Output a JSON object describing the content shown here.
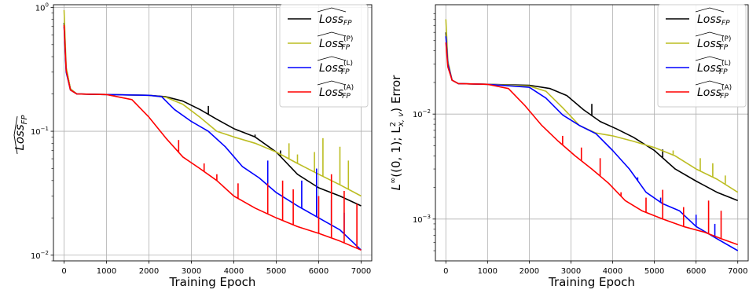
{
  "chart_data": [
    {
      "type": "line",
      "title": "",
      "xlabel": "Training Epoch",
      "ylabel": "Loss_FP (hat)",
      "ylabel_main": "Loss",
      "ylabel_sub": "FP",
      "yscale": "log",
      "xlim": [
        -250,
        7250
      ],
      "ylim": [
        0.009,
        1.05
      ],
      "x_ticks": [
        0,
        1000,
        2000,
        3000,
        4000,
        5000,
        6000,
        7000
      ],
      "x_tick_labels": [
        "0",
        "1000",
        "2000",
        "3000",
        "4000",
        "5000",
        "6000",
        "7000"
      ],
      "y_ticks": [
        0.01,
        0.1,
        1
      ],
      "y_tick_labels": [
        [
          "10",
          "−2"
        ],
        [
          "10",
          "−1"
        ],
        [
          "10",
          "0"
        ]
      ],
      "grid": true,
      "legend_position": "top-right",
      "series": [
        {
          "name": "Loss_FP",
          "legend_main": "Loss",
          "legend_sub": "FP",
          "legend_sup": "",
          "color": "#000000",
          "points": [
            [
              0,
              0.75
            ],
            [
              50,
              0.32
            ],
            [
              150,
              0.22
            ],
            [
              300,
              0.2
            ],
            [
              1000,
              0.198
            ],
            [
              2000,
              0.195
            ],
            [
              2400,
              0.19
            ],
            [
              2800,
              0.175
            ],
            [
              3200,
              0.15
            ],
            [
              3600,
              0.125
            ],
            [
              4000,
              0.105
            ],
            [
              4500,
              0.09
            ],
            [
              5000,
              0.068
            ],
            [
              5500,
              0.045
            ],
            [
              6000,
              0.035
            ],
            [
              6500,
              0.03
            ],
            [
              7000,
              0.025
            ]
          ],
          "spikes": [
            [
              3400,
              0.16
            ],
            [
              4500,
              0.094
            ],
            [
              5100,
              0.07
            ]
          ]
        },
        {
          "name": "Loss_FP^(P)",
          "legend_main": "Loss",
          "legend_sub": "FP",
          "legend_sup": "(P)",
          "color": "#bcbd22",
          "points": [
            [
              0,
              0.95
            ],
            [
              50,
              0.33
            ],
            [
              150,
              0.22
            ],
            [
              300,
              0.2
            ],
            [
              1000,
              0.198
            ],
            [
              2000,
              0.195
            ],
            [
              2400,
              0.188
            ],
            [
              2800,
              0.165
            ],
            [
              3200,
              0.13
            ],
            [
              3600,
              0.1
            ],
            [
              4000,
              0.09
            ],
            [
              4500,
              0.08
            ],
            [
              5000,
              0.068
            ],
            [
              5500,
              0.055
            ],
            [
              6000,
              0.045
            ],
            [
              6500,
              0.037
            ],
            [
              7000,
              0.03
            ]
          ],
          "spikes": [
            [
              5300,
              0.08
            ],
            [
              5500,
              0.065
            ],
            [
              5900,
              0.068
            ],
            [
              6100,
              0.088
            ],
            [
              6500,
              0.075
            ],
            [
              6700,
              0.058
            ]
          ]
        },
        {
          "name": "Loss_FP^(L)",
          "legend_main": "Loss",
          "legend_sub": "FP",
          "legend_sup": "(L)",
          "color": "#0000ff",
          "points": [
            [
              0,
              0.7
            ],
            [
              50,
              0.3
            ],
            [
              150,
              0.215
            ],
            [
              300,
              0.2
            ],
            [
              1000,
              0.198
            ],
            [
              2000,
              0.195
            ],
            [
              2300,
              0.19
            ],
            [
              2600,
              0.15
            ],
            [
              3000,
              0.12
            ],
            [
              3400,
              0.1
            ],
            [
              3800,
              0.075
            ],
            [
              4200,
              0.052
            ],
            [
              4600,
              0.042
            ],
            [
              5000,
              0.032
            ],
            [
              5500,
              0.025
            ],
            [
              6000,
              0.02
            ],
            [
              6500,
              0.016
            ],
            [
              7000,
              0.011
            ]
          ],
          "spikes": [
            [
              4800,
              0.058
            ],
            [
              5600,
              0.04
            ],
            [
              5950,
              0.05
            ],
            [
              6300,
              0.028
            ],
            [
              6600,
              0.022
            ]
          ]
        },
        {
          "name": "Loss_FP^(A)",
          "legend_main": "Loss",
          "legend_sub": "FP",
          "legend_sup": "(A)",
          "color": "#ff0000",
          "points": [
            [
              0,
              0.72
            ],
            [
              50,
              0.31
            ],
            [
              150,
              0.215
            ],
            [
              300,
              0.2
            ],
            [
              1000,
              0.198
            ],
            [
              1600,
              0.18
            ],
            [
              2000,
              0.13
            ],
            [
              2400,
              0.088
            ],
            [
              2800,
              0.062
            ],
            [
              3200,
              0.05
            ],
            [
              3600,
              0.04
            ],
            [
              4000,
              0.03
            ],
            [
              4500,
              0.024
            ],
            [
              5000,
              0.02
            ],
            [
              5500,
              0.017
            ],
            [
              6000,
              0.015
            ],
            [
              6500,
              0.013
            ],
            [
              7000,
              0.011
            ]
          ],
          "spikes": [
            [
              2700,
              0.085
            ],
            [
              3300,
              0.055
            ],
            [
              3600,
              0.045
            ],
            [
              4100,
              0.038
            ],
            [
              4800,
              0.038
            ],
            [
              5150,
              0.04
            ],
            [
              5400,
              0.034
            ],
            [
              6000,
              0.03
            ],
            [
              6300,
              0.045
            ],
            [
              6600,
              0.033
            ],
            [
              6900,
              0.026
            ]
          ]
        }
      ]
    },
    {
      "type": "line",
      "title": "",
      "xlabel": "Training Epoch",
      "ylabel": "L^∞((0,1); L^2_{x,v}) Error",
      "ylabel_a": "L",
      "ylabel_a_sup": "∞",
      "ylabel_b": "((0, 1); L",
      "ylabel_b_sup": "2",
      "ylabel_b_sub": "x, v",
      "ylabel_c": ") Error",
      "yscale": "log",
      "xlim": [
        -250,
        7250
      ],
      "ylim": [
        0.0004,
        0.11
      ],
      "x_ticks": [
        0,
        1000,
        2000,
        3000,
        4000,
        5000,
        6000,
        7000
      ],
      "x_tick_labels": [
        "0",
        "1000",
        "2000",
        "3000",
        "4000",
        "5000",
        "6000",
        "7000"
      ],
      "y_ticks": [
        0.001,
        0.01
      ],
      "y_tick_labels": [
        [
          "10",
          "−3"
        ],
        [
          "10",
          "−2"
        ]
      ],
      "grid": true,
      "legend_position": "top-right",
      "series": [
        {
          "name": "Loss_FP",
          "color": "#000000",
          "points": [
            [
              0,
              0.06
            ],
            [
              50,
              0.03
            ],
            [
              150,
              0.021
            ],
            [
              300,
              0.0195
            ],
            [
              1000,
              0.0192
            ],
            [
              2000,
              0.0188
            ],
            [
              2500,
              0.0175
            ],
            [
              2900,
              0.015
            ],
            [
              3300,
              0.011
            ],
            [
              3700,
              0.0085
            ],
            [
              4100,
              0.0072
            ],
            [
              4500,
              0.006
            ],
            [
              5000,
              0.0045
            ],
            [
              5500,
              0.003
            ],
            [
              6000,
              0.0023
            ],
            [
              6500,
              0.0018
            ],
            [
              7000,
              0.0015
            ]
          ],
          "spikes": [
            [
              3500,
              0.0125
            ],
            [
              5200,
              0.0046
            ]
          ]
        },
        {
          "name": "Loss_FP^(P)",
          "color": "#bcbd22",
          "points": [
            [
              0,
              0.08
            ],
            [
              50,
              0.032
            ],
            [
              150,
              0.021
            ],
            [
              300,
              0.0195
            ],
            [
              1000,
              0.0192
            ],
            [
              2000,
              0.0185
            ],
            [
              2400,
              0.0165
            ],
            [
              2800,
              0.0115
            ],
            [
              3200,
              0.0078
            ],
            [
              3600,
              0.0066
            ],
            [
              4000,
              0.0062
            ],
            [
              4500,
              0.0055
            ],
            [
              5000,
              0.0048
            ],
            [
              5500,
              0.004
            ],
            [
              6000,
              0.003
            ],
            [
              6500,
              0.0024
            ],
            [
              7000,
              0.0018
            ]
          ],
          "spikes": [
            [
              5450,
              0.0045
            ],
            [
              6100,
              0.0038
            ],
            [
              6400,
              0.0034
            ],
            [
              6700,
              0.0026
            ]
          ]
        },
        {
          "name": "Loss_FP^(L)",
          "color": "#0000ff",
          "points": [
            [
              0,
              0.055
            ],
            [
              50,
              0.03
            ],
            [
              150,
              0.021
            ],
            [
              300,
              0.0195
            ],
            [
              1000,
              0.0192
            ],
            [
              2000,
              0.018
            ],
            [
              2400,
              0.0142
            ],
            [
              2800,
              0.0098
            ],
            [
              3200,
              0.0078
            ],
            [
              3600,
              0.0065
            ],
            [
              4000,
              0.0045
            ],
            [
              4400,
              0.003
            ],
            [
              4800,
              0.0018
            ],
            [
              5200,
              0.0014
            ],
            [
              5600,
              0.0012
            ],
            [
              6000,
              0.00085
            ],
            [
              6500,
              0.00065
            ],
            [
              7000,
              0.0005
            ]
          ],
          "spikes": [
            [
              4600,
              0.0025
            ],
            [
              5150,
              0.0016
            ],
            [
              6000,
              0.0011
            ],
            [
              6450,
              0.0009
            ]
          ]
        },
        {
          "name": "Loss_FP^(A)",
          "color": "#ff0000",
          "points": [
            [
              0,
              0.048
            ],
            [
              50,
              0.028
            ],
            [
              150,
              0.021
            ],
            [
              300,
              0.0195
            ],
            [
              1000,
              0.0192
            ],
            [
              1500,
              0.0175
            ],
            [
              1900,
              0.012
            ],
            [
              2300,
              0.0078
            ],
            [
              2700,
              0.0055
            ],
            [
              3100,
              0.004
            ],
            [
              3500,
              0.003
            ],
            [
              3900,
              0.0022
            ],
            [
              4300,
              0.0015
            ],
            [
              4700,
              0.0012
            ],
            [
              5200,
              0.001
            ],
            [
              5700,
              0.00085
            ],
            [
              6200,
              0.00075
            ],
            [
              6600,
              0.00065
            ],
            [
              7000,
              0.00057
            ]
          ],
          "spikes": [
            [
              2800,
              0.0062
            ],
            [
              3250,
              0.0048
            ],
            [
              3700,
              0.0038
            ],
            [
              4200,
              0.0018
            ],
            [
              4800,
              0.0016
            ],
            [
              5200,
              0.0019
            ],
            [
              5700,
              0.0013
            ],
            [
              6300,
              0.0015
            ],
            [
              6600,
              0.0012
            ]
          ]
        }
      ]
    }
  ]
}
